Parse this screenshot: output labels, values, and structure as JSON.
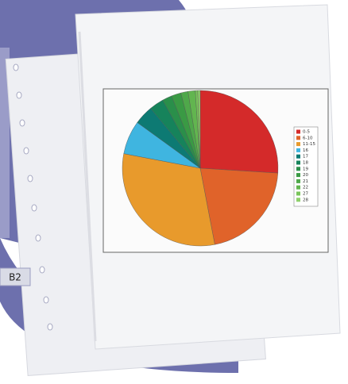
{
  "badge": "B2",
  "chart_data": {
    "type": "pie",
    "categories": [
      "0-5",
      "6-10",
      "11-15",
      "16",
      "17",
      "18",
      "19",
      "20",
      "21",
      "22",
      "27",
      "28"
    ],
    "values": [
      26,
      21,
      31,
      7,
      4,
      3,
      2,
      2,
      1.5,
      1.5,
      0.5,
      0.5
    ],
    "colors": [
      "#d42a2a",
      "#e0632a",
      "#e89a2c",
      "#3fb5e0",
      "#0d7a73",
      "#16835b",
      "#2a8f4a",
      "#3a9a44",
      "#4fa84a",
      "#62b54f",
      "#78c45a",
      "#8dd06a"
    ]
  }
}
